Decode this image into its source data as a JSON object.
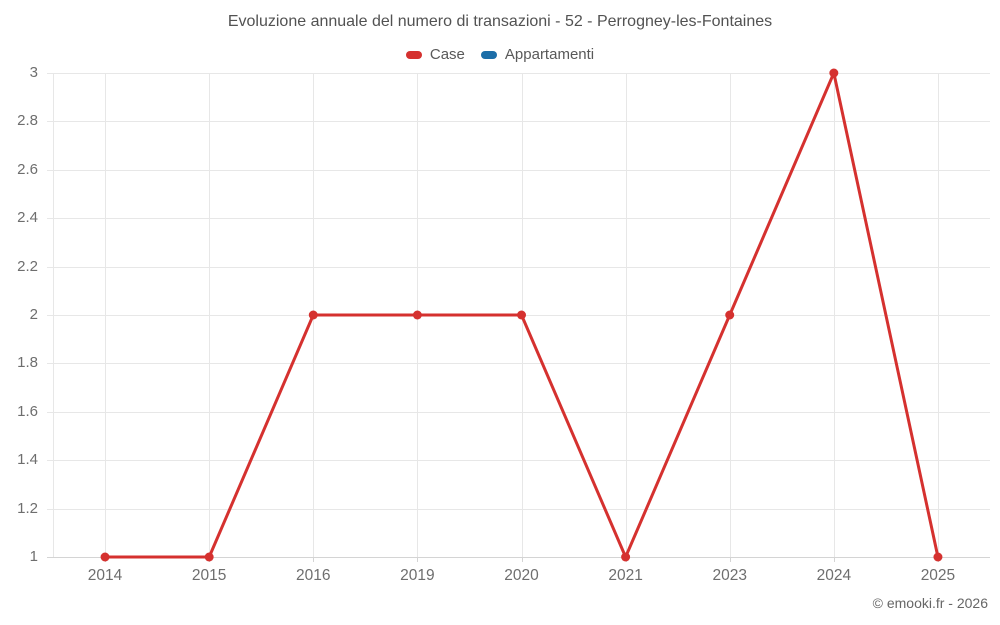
{
  "header": {
    "title": "Evoluzione annuale del numero di transazioni - 52 - Perrogney-les-Fontaines"
  },
  "legend": {
    "items": [
      {
        "label": "Case",
        "color": "#d5312f"
      },
      {
        "label": "Appartamenti",
        "color": "#1c6ea8"
      }
    ]
  },
  "credits": {
    "text": "© emooki.fr - 2026"
  },
  "colors": {
    "case_red": "#d5312f",
    "appartamenti_blue": "#1c6ea8",
    "gridline": "#e7e7e7",
    "axis_line": "#d4d4d4",
    "title_text": "#525252",
    "label_text": "#6e6e6e"
  },
  "chart_data": {
    "type": "line",
    "title": "Evoluzione annuale del numero di transazioni - 52 - Perrogney-les-Fontaines",
    "categories": [
      "2014",
      "2015",
      "2016",
      "2019",
      "2020",
      "2021",
      "2023",
      "2024",
      "2025"
    ],
    "series": [
      {
        "name": "Case",
        "color": "#d5312f",
        "values": [
          1,
          1,
          2,
          2,
          2,
          1,
          2,
          3,
          1
        ]
      },
      {
        "name": "Appartamenti",
        "color": "#1c6ea8",
        "values": []
      }
    ],
    "xlabel": "",
    "ylabel": "",
    "ylim": [
      1,
      3
    ],
    "y_ticks": [
      "1",
      "1.2",
      "1.4",
      "1.6",
      "1.8",
      "2",
      "2.2",
      "2.4",
      "2.6",
      "2.8",
      "3"
    ],
    "grid": true,
    "legend_position": "top"
  }
}
